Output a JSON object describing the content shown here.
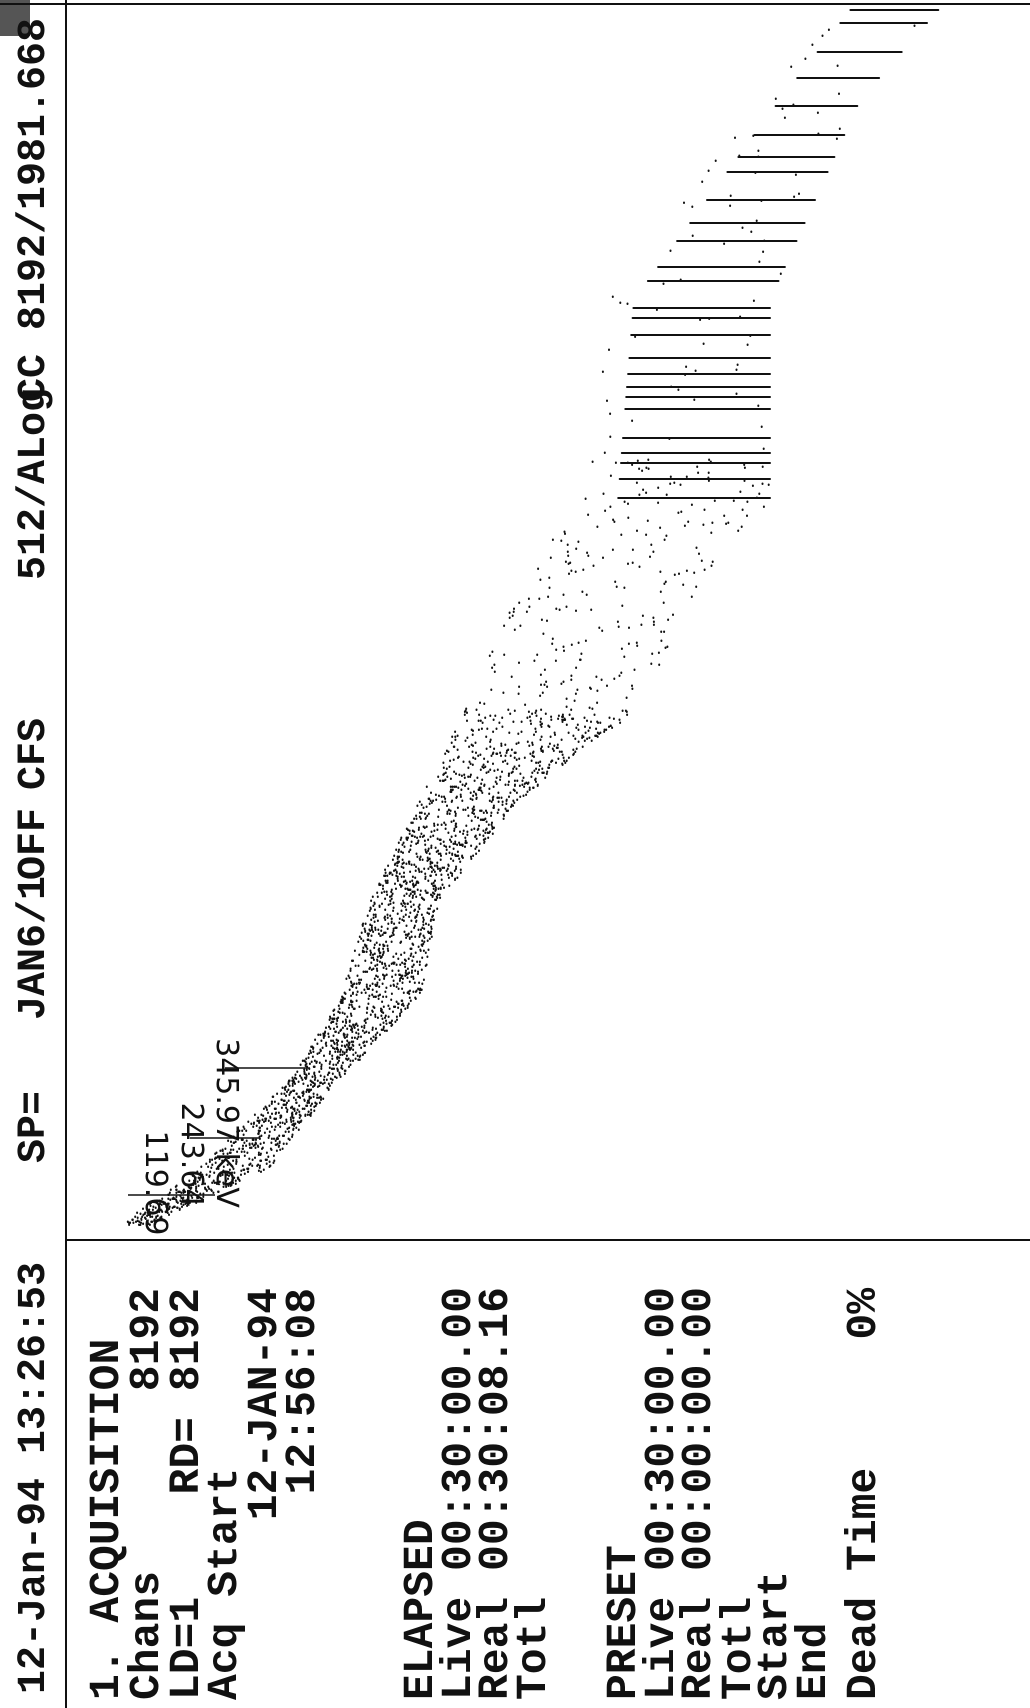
{
  "header": {
    "datetime": "12-Jan-94 13:26:53",
    "sp": "SP=",
    "spectrum": "JAN6/1",
    "off": "OFF",
    "mode": "CFS",
    "scale": "512/ALog",
    "cc": "CC 8192/1981.668"
  },
  "panel": {
    "title": "1. ACQUISITION",
    "chans_label": "Chans",
    "chans_value": "8192",
    "ld": "LD=1",
    "rd": "RD= 8192",
    "acq_start": "Acq Start",
    "acq_date": "12-JAN-94",
    "acq_time": "12:56:08",
    "elapsed": {
      "title": "ELAPSED",
      "live": "Live 00:30:00.00",
      "real": "Real 00:30:08.16",
      "totl": "Totl"
    },
    "preset": {
      "title": "PRESET",
      "live": "Live 00:30:00.00",
      "real": "Real 00:00:00.00",
      "totl": "Totl",
      "start": "Start",
      "end": "End"
    },
    "dead_time_label": "Dead Time",
    "dead_time_value": "0%"
  },
  "peaks": [
    "119.69",
    "243.64",
    "345.97 keV"
  ]
}
